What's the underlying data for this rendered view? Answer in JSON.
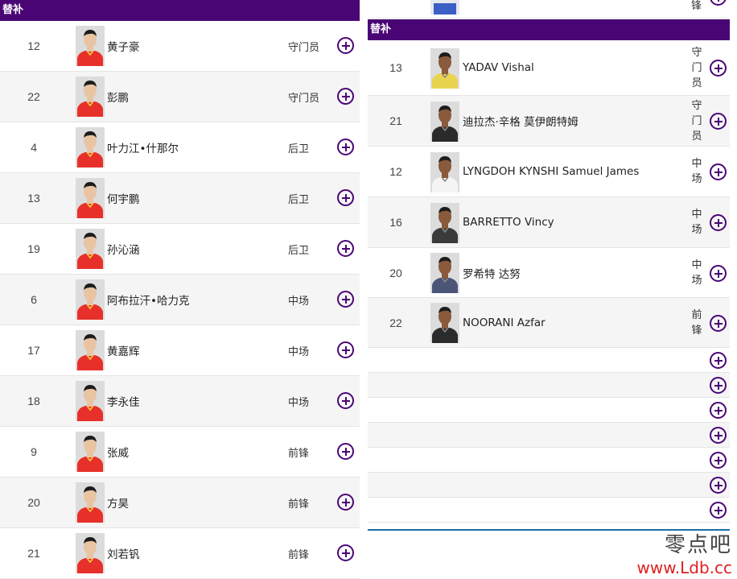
{
  "left": {
    "header": "替补",
    "rows": [
      {
        "number": "12",
        "name": "黄子豪",
        "position": "守门员"
      },
      {
        "number": "22",
        "name": "彭鹏",
        "position": "守门员"
      },
      {
        "number": "4",
        "name": "叶力江•什那尔",
        "position": "后卫"
      },
      {
        "number": "13",
        "name": "何宇鹏",
        "position": "后卫"
      },
      {
        "number": "19",
        "name": "孙沁涵",
        "position": "后卫"
      },
      {
        "number": "6",
        "name": "阿布拉汗•哈力克",
        "position": "中场"
      },
      {
        "number": "17",
        "name": "黄嘉辉",
        "position": "中场"
      },
      {
        "number": "18",
        "name": "李永佳",
        "position": "中场"
      },
      {
        "number": "9",
        "name": "张威",
        "position": "前锋"
      },
      {
        "number": "20",
        "name": "方昊",
        "position": "前锋"
      },
      {
        "number": "21",
        "name": "刘若钒",
        "position": "前锋"
      }
    ]
  },
  "right": {
    "top_partial_position": "锋",
    "header": "替补",
    "rows": [
      {
        "number": "13",
        "name": "YADAV Vishal",
        "position": "守门员"
      },
      {
        "number": "21",
        "name": "迪拉杰·辛格 莫伊朗特姆",
        "position": "守门员"
      },
      {
        "number": "12",
        "name": "LYNGDOH KYNSHI Samuel James",
        "position": "中场"
      },
      {
        "number": "16",
        "name": "BARRETTO Vincy",
        "position": "中场"
      },
      {
        "number": "20",
        "name": "罗希特 达努",
        "position": "中场"
      },
      {
        "number": "22",
        "name": "NOORANI Azfar",
        "position": "前锋"
      }
    ],
    "empty_rows": 7
  },
  "watermark": {
    "text": "零点吧",
    "url": "www.Ldb.cc"
  },
  "colors": {
    "accent": "#4a0575",
    "china_jersey": "#e8302a",
    "india_jersey": "#f2f2f2"
  }
}
